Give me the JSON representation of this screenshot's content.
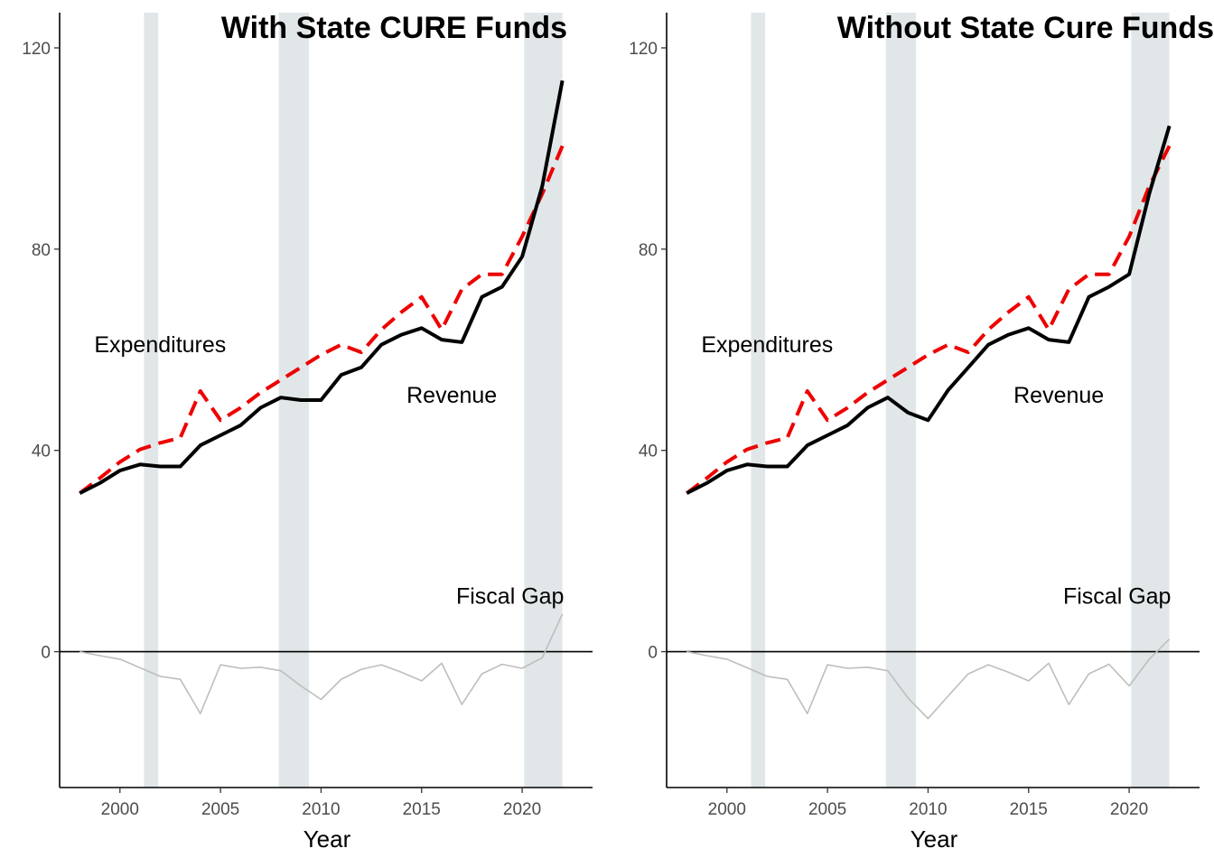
{
  "chart_data": [
    {
      "type": "line",
      "title": "With State CURE Funds",
      "xlabel": "Year",
      "ylabel": "",
      "xlim": [
        1997,
        2023.5
      ],
      "ylim": [
        -27,
        127
      ],
      "x_ticks": [
        2000,
        2005,
        2010,
        2015,
        2020
      ],
      "y_ticks": [
        0,
        40,
        80,
        120
      ],
      "grid": false,
      "legend": "none",
      "recession_bands": [
        [
          2001.2,
          2001.9
        ],
        [
          2007.9,
          2009.4
        ],
        [
          2020.1,
          2022.0
        ]
      ],
      "colors": {
        "revenue": "#000000",
        "expenditures": "#ee0000",
        "fiscal_gap": "#bebebe",
        "band": "#e1e6e9"
      },
      "x": [
        1998,
        1999,
        2000,
        2001,
        2002,
        2003,
        2004,
        2005,
        2006,
        2007,
        2008,
        2009,
        2010,
        2011,
        2012,
        2013,
        2014,
        2015,
        2016,
        2017,
        2018,
        2019,
        2020,
        2021,
        2022
      ],
      "series": [
        {
          "name": "Revenue",
          "style": "solid",
          "values": [
            31.5,
            33.5,
            36,
            37.2,
            36.8,
            36.8,
            41,
            43,
            45,
            48.5,
            50.5,
            50,
            50,
            55,
            56.5,
            61,
            63,
            64.3,
            62,
            61.5,
            70.5,
            72.5,
            78.5,
            92.5,
            113.5
          ]
        },
        {
          "name": "Expenditures",
          "style": "dashed",
          "values": [
            31.5,
            34.5,
            37.7,
            40.2,
            41.5,
            42.5,
            51.8,
            46,
            48.5,
            51.5,
            54,
            56.5,
            59,
            61,
            59.5,
            64,
            67.5,
            70.5,
            64,
            72,
            75,
            75,
            82.5,
            91,
            100.5
          ]
        },
        {
          "name": "Fiscal Gap",
          "style": "thin",
          "values": [
            0,
            -0.8,
            -1.5,
            -3.2,
            -4.9,
            -5.5,
            -12.3,
            -2.6,
            -3.3,
            -3.1,
            -3.8,
            -6.8,
            -9.5,
            -5.5,
            -3.5,
            -2.6,
            -4.1,
            -5.8,
            -2.3,
            -10.5,
            -4.4,
            -2.5,
            -3.3,
            -1.2,
            7.5
          ]
        }
      ],
      "annotations": [
        {
          "text": "Expenditures",
          "x": 2002,
          "y": 59.5
        },
        {
          "text": "Revenue",
          "x": 2016.5,
          "y": 49.5
        },
        {
          "text": "Fiscal Gap",
          "x": 2019.4,
          "y": 9.5
        }
      ]
    },
    {
      "type": "line",
      "title": "Without State Cure Funds",
      "xlabel": "Year",
      "ylabel": "",
      "xlim": [
        1997,
        2023.5
      ],
      "ylim": [
        -27,
        127
      ],
      "x_ticks": [
        2000,
        2005,
        2010,
        2015,
        2020
      ],
      "y_ticks": [
        0,
        40,
        80,
        120
      ],
      "grid": false,
      "legend": "none",
      "recession_bands": [
        [
          2001.2,
          2001.9
        ],
        [
          2007.9,
          2009.4
        ],
        [
          2020.1,
          2022.0
        ]
      ],
      "colors": {
        "revenue": "#000000",
        "expenditures": "#ee0000",
        "fiscal_gap": "#bebebe",
        "band": "#e1e6e9"
      },
      "x": [
        1998,
        1999,
        2000,
        2001,
        2002,
        2003,
        2004,
        2005,
        2006,
        2007,
        2008,
        2009,
        2010,
        2011,
        2012,
        2013,
        2014,
        2015,
        2016,
        2017,
        2018,
        2019,
        2020,
        2021,
        2022
      ],
      "series": [
        {
          "name": "Revenue",
          "style": "solid",
          "values": [
            31.5,
            33.5,
            36,
            37.2,
            36.8,
            36.8,
            41,
            43,
            45,
            48.5,
            50.5,
            47.5,
            46,
            52,
            56.5,
            61,
            63,
            64.3,
            62,
            61.5,
            70.5,
            72.5,
            75,
            91,
            104.5
          ]
        },
        {
          "name": "Expenditures",
          "style": "dashed",
          "values": [
            31.5,
            34.5,
            37.7,
            40.2,
            41.5,
            42.5,
            51.8,
            46,
            48.5,
            51.5,
            54,
            56.5,
            59,
            61,
            59.5,
            64,
            67.5,
            70.5,
            64,
            72,
            75,
            75,
            82.5,
            92.5,
            100.5
          ]
        },
        {
          "name": "Fiscal Gap",
          "style": "thin",
          "values": [
            0,
            -0.8,
            -1.5,
            -3.2,
            -4.9,
            -5.5,
            -12.3,
            -2.6,
            -3.3,
            -3.1,
            -3.8,
            -9.2,
            -13.3,
            -8.8,
            -4.4,
            -2.6,
            -4.1,
            -5.8,
            -2.3,
            -10.5,
            -4.4,
            -2.5,
            -6.8,
            -1.5,
            2.5
          ]
        }
      ],
      "annotations": [
        {
          "text": "Expenditures",
          "x": 2002,
          "y": 59.5
        },
        {
          "text": "Revenue",
          "x": 2016.5,
          "y": 49.5
        },
        {
          "text": "Fiscal Gap",
          "x": 2019.4,
          "y": 9.5
        }
      ]
    }
  ]
}
